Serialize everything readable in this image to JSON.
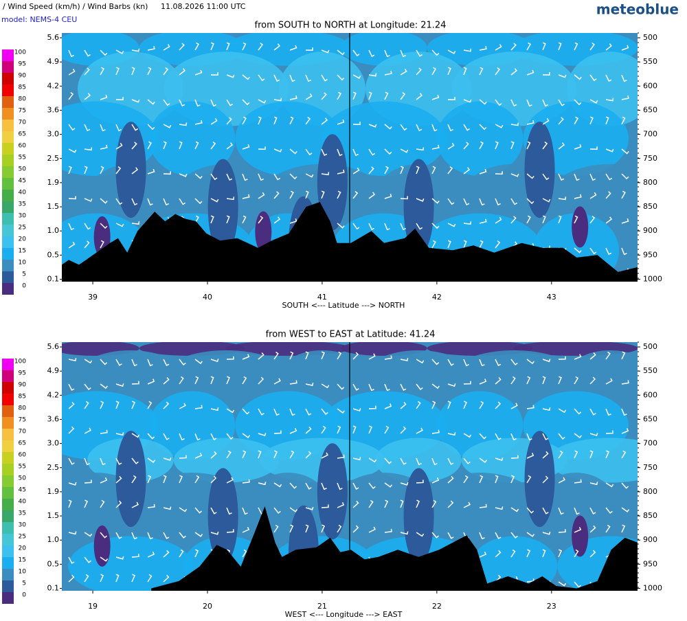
{
  "header": {
    "title": "/ Wind Speed (km/h) / Wind Barbs (kn)",
    "datetime": "11.08.2026  11:00 UTC",
    "brand": "meteoblue",
    "model": "model: NEMS-4 CEU"
  },
  "colorbar": {
    "ticks": [
      0,
      5,
      10,
      15,
      20,
      25,
      30,
      35,
      40,
      45,
      50,
      55,
      60,
      65,
      70,
      75,
      80,
      85,
      90,
      95,
      100
    ],
    "colors": [
      "#4a2d7f",
      "#2c5a9b",
      "#3c8dbf",
      "#1aaef0",
      "#3cc0f0",
      "#44c6d6",
      "#3cbfae",
      "#38a86a",
      "#46ae48",
      "#62c03e",
      "#86cc30",
      "#a8d022",
      "#c8d020",
      "#f0d040",
      "#f8c040",
      "#f09020",
      "#e06010",
      "#f00000",
      "#d00000",
      "#d0007a",
      "#f000f0"
    ]
  },
  "chart_data": [
    {
      "type": "cross-section",
      "title": "from SOUTH to NORTH at Longitude:  21.24",
      "x_label": "SOUTH <---   Latitude   ---> NORTH",
      "xlim": [
        38.73,
        43.75
      ],
      "xticks": [
        39,
        40,
        41,
        42,
        43
      ],
      "yticks": [
        5.6,
        4.9,
        4.2,
        3.6,
        {
          "value": 3,
          "label": "3.0"
        },
        2.5,
        1.9,
        1.5,
        {
          "value": 1,
          "label": "1.0"
        },
        0.5,
        0.1
      ],
      "y2lim": [
        490,
        1005
      ],
      "y2ticks": [
        500,
        550,
        600,
        650,
        700,
        750,
        800,
        850,
        900,
        950,
        1000
      ],
      "marker_x": 41.24,
      "terrain": {
        "color": "#000000",
        "axis": "y2",
        "x": [
          38.73,
          38.79,
          38.88,
          38.97,
          39.15,
          39.22,
          39.3,
          39.39,
          39.54,
          39.63,
          39.72,
          39.81,
          39.9,
          39.99,
          40.11,
          40.26,
          40.44,
          40.56,
          40.71,
          40.86,
          40.98,
          41.07,
          41.13,
          41.25,
          41.43,
          41.54,
          41.72,
          41.81,
          41.93,
          42.14,
          42.32,
          42.5,
          42.74,
          42.92,
          43.1,
          43.22,
          43.4,
          43.58,
          43.75
        ],
        "values": [
          970,
          960,
          970,
          955,
          925,
          915,
          945,
          900,
          860,
          880,
          865,
          875,
          880,
          905,
          920,
          915,
          935,
          920,
          905,
          850,
          840,
          880,
          925,
          925,
          900,
          925,
          915,
          895,
          935,
          940,
          930,
          945,
          925,
          935,
          935,
          955,
          950,
          985,
          975
        ]
      }
    },
    {
      "type": "cross-section",
      "title": "from WEST to EAST at Latitude:  41.24",
      "x_label": "WEST <---   Longitude   ---> EAST",
      "xlim": [
        18.73,
        23.75
      ],
      "xticks": [
        19,
        20,
        21,
        22,
        23
      ],
      "yticks": [
        5.6,
        4.9,
        4.2,
        3.6,
        {
          "value": 3,
          "label": "3.0"
        },
        2.5,
        1.9,
        1.5,
        {
          "value": 1,
          "label": "1.0"
        },
        0.5,
        0.1
      ],
      "y2lim": [
        490,
        1005
      ],
      "y2ticks": [
        500,
        550,
        600,
        650,
        700,
        750,
        800,
        850,
        900,
        950,
        1000
      ],
      "marker_x": 21.24,
      "terrain": {
        "color": "#000000",
        "axis": "y2",
        "x": [
          19.51,
          19.75,
          19.93,
          20.08,
          20.17,
          20.29,
          20.41,
          20.5,
          20.59,
          20.65,
          20.77,
          20.95,
          21.07,
          21.16,
          21.25,
          21.37,
          21.49,
          21.66,
          21.84,
          22.02,
          22.14,
          22.26,
          22.35,
          22.44,
          22.62,
          22.8,
          22.92,
          23.04,
          23.22,
          23.4,
          23.52,
          23.64,
          23.75
        ],
        "values": [
          1000,
          985,
          955,
          910,
          920,
          955,
          885,
          830,
          905,
          935,
          920,
          915,
          895,
          925,
          920,
          940,
          935,
          920,
          935,
          920,
          905,
          890,
          920,
          990,
          975,
          990,
          975,
          995,
          1000,
          985,
          920,
          895,
          905
        ]
      }
    }
  ]
}
